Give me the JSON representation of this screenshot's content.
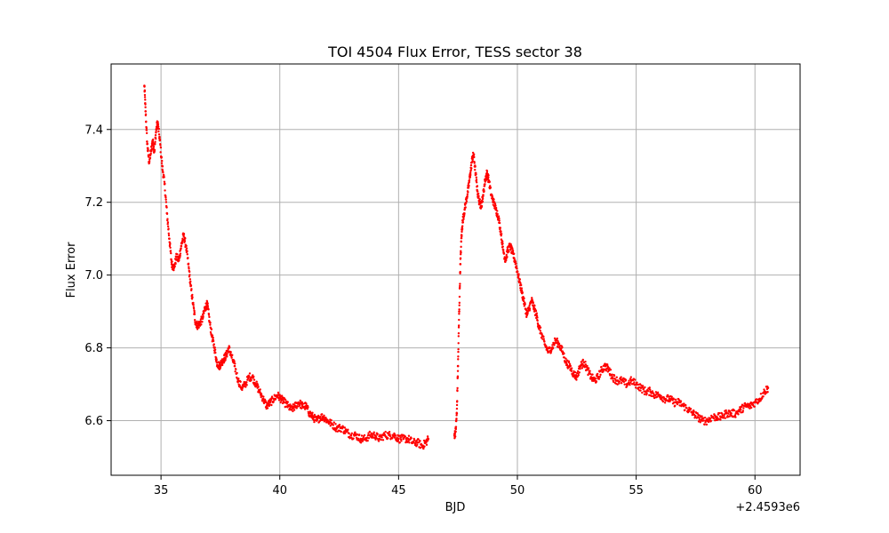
{
  "chart_data": {
    "type": "scatter",
    "title": "TOI 4504 Flux Error, TESS sector 38",
    "xlabel": "BJD",
    "ylabel": "Flux Error",
    "x_offset_label": "+2.4593e6",
    "xlim": [
      32.9,
      61.9
    ],
    "ylim": [
      6.45,
      7.58
    ],
    "xticks": [
      35,
      40,
      45,
      50,
      55,
      60
    ],
    "yticks": [
      6.6,
      6.8,
      7.0,
      7.2,
      7.4
    ],
    "xtick_labels": [
      "35",
      "40",
      "45",
      "50",
      "55",
      "60"
    ],
    "ytick_labels": [
      "6.6",
      "6.8",
      "7.0",
      "7.2",
      "7.4"
    ],
    "grid": true,
    "marker_color": "#ff0000",
    "series": [
      {
        "points": [
          [
            34.3,
            7.52
          ],
          [
            34.35,
            7.45
          ],
          [
            34.42,
            7.36
          ],
          [
            34.5,
            7.31
          ],
          [
            34.58,
            7.34
          ],
          [
            34.65,
            7.37
          ],
          [
            34.72,
            7.34
          ],
          [
            34.8,
            7.4
          ],
          [
            34.86,
            7.42
          ],
          [
            34.95,
            7.37
          ],
          [
            35.05,
            7.3
          ],
          [
            35.15,
            7.25
          ],
          [
            35.25,
            7.17
          ],
          [
            35.35,
            7.1
          ],
          [
            35.45,
            7.03
          ],
          [
            35.55,
            7.02
          ],
          [
            35.65,
            7.05
          ],
          [
            35.75,
            7.04
          ],
          [
            35.85,
            7.08
          ],
          [
            35.95,
            7.11
          ],
          [
            36.05,
            7.08
          ],
          [
            36.15,
            7.03
          ],
          [
            36.25,
            6.97
          ],
          [
            36.35,
            6.92
          ],
          [
            36.45,
            6.87
          ],
          [
            36.55,
            6.86
          ],
          [
            36.65,
            6.87
          ],
          [
            36.75,
            6.88
          ],
          [
            36.85,
            6.91
          ],
          [
            36.95,
            6.92
          ],
          [
            37.05,
            6.87
          ],
          [
            37.15,
            6.83
          ],
          [
            37.25,
            6.8
          ],
          [
            37.35,
            6.76
          ],
          [
            37.45,
            6.75
          ],
          [
            37.55,
            6.76
          ],
          [
            37.65,
            6.77
          ],
          [
            37.75,
            6.78
          ],
          [
            37.85,
            6.8
          ],
          [
            37.95,
            6.78
          ],
          [
            38.1,
            6.75
          ],
          [
            38.25,
            6.71
          ],
          [
            38.4,
            6.69
          ],
          [
            38.55,
            6.7
          ],
          [
            38.7,
            6.72
          ],
          [
            38.85,
            6.72
          ],
          [
            39.0,
            6.7
          ],
          [
            39.15,
            6.68
          ],
          [
            39.3,
            6.66
          ],
          [
            39.45,
            6.64
          ],
          [
            39.6,
            6.65
          ],
          [
            39.75,
            6.66
          ],
          [
            39.9,
            6.67
          ],
          [
            40.05,
            6.66
          ],
          [
            40.2,
            6.65
          ],
          [
            40.35,
            6.64
          ],
          [
            40.5,
            6.63
          ],
          [
            40.65,
            6.64
          ],
          [
            40.8,
            6.65
          ],
          [
            40.95,
            6.64
          ],
          [
            41.1,
            6.64
          ],
          [
            41.25,
            6.62
          ],
          [
            41.4,
            6.61
          ],
          [
            41.55,
            6.6
          ],
          [
            41.7,
            6.61
          ],
          [
            41.85,
            6.61
          ],
          [
            42.0,
            6.6
          ],
          [
            42.2,
            6.59
          ],
          [
            42.4,
            6.58
          ],
          [
            42.6,
            6.58
          ],
          [
            42.8,
            6.57
          ],
          [
            43.0,
            6.56
          ],
          [
            43.2,
            6.56
          ],
          [
            43.4,
            6.55
          ],
          [
            43.6,
            6.55
          ],
          [
            43.8,
            6.56
          ],
          [
            44.0,
            6.56
          ],
          [
            44.2,
            6.55
          ],
          [
            44.4,
            6.56
          ],
          [
            44.6,
            6.56
          ],
          [
            44.8,
            6.56
          ],
          [
            45.0,
            6.55
          ],
          [
            45.2,
            6.55
          ],
          [
            45.4,
            6.55
          ],
          [
            45.6,
            6.54
          ],
          [
            45.8,
            6.54
          ],
          [
            46.0,
            6.53
          ],
          [
            46.15,
            6.54
          ],
          [
            46.25,
            6.55
          ],
          [
            47.35,
            6.56
          ],
          [
            47.4,
            6.57
          ],
          [
            47.45,
            6.62
          ],
          [
            47.5,
            6.75
          ],
          [
            47.55,
            6.9
          ],
          [
            47.6,
            7.03
          ],
          [
            47.65,
            7.11
          ],
          [
            47.7,
            7.15
          ],
          [
            47.78,
            7.18
          ],
          [
            47.86,
            7.21
          ],
          [
            47.94,
            7.24
          ],
          [
            48.02,
            7.28
          ],
          [
            48.1,
            7.32
          ],
          [
            48.16,
            7.33
          ],
          [
            48.24,
            7.28
          ],
          [
            48.32,
            7.23
          ],
          [
            48.4,
            7.2
          ],
          [
            48.48,
            7.19
          ],
          [
            48.56,
            7.22
          ],
          [
            48.64,
            7.26
          ],
          [
            48.72,
            7.28
          ],
          [
            48.8,
            7.26
          ],
          [
            48.9,
            7.22
          ],
          [
            49.0,
            7.2
          ],
          [
            49.1,
            7.18
          ],
          [
            49.2,
            7.16
          ],
          [
            49.3,
            7.12
          ],
          [
            49.4,
            7.07
          ],
          [
            49.5,
            7.04
          ],
          [
            49.6,
            7.07
          ],
          [
            49.7,
            7.08
          ],
          [
            49.8,
            7.06
          ],
          [
            49.9,
            7.04
          ],
          [
            50.0,
            7.01
          ],
          [
            50.1,
            6.98
          ],
          [
            50.2,
            6.95
          ],
          [
            50.3,
            6.92
          ],
          [
            50.4,
            6.89
          ],
          [
            50.5,
            6.91
          ],
          [
            50.6,
            6.93
          ],
          [
            50.7,
            6.91
          ],
          [
            50.8,
            6.89
          ],
          [
            50.9,
            6.86
          ],
          [
            51.0,
            6.84
          ],
          [
            51.15,
            6.81
          ],
          [
            51.3,
            6.79
          ],
          [
            51.45,
            6.8
          ],
          [
            51.6,
            6.82
          ],
          [
            51.75,
            6.81
          ],
          [
            51.9,
            6.79
          ],
          [
            52.05,
            6.76
          ],
          [
            52.2,
            6.75
          ],
          [
            52.35,
            6.73
          ],
          [
            52.5,
            6.72
          ],
          [
            52.65,
            6.75
          ],
          [
            52.8,
            6.76
          ],
          [
            52.95,
            6.74
          ],
          [
            53.1,
            6.72
          ],
          [
            53.25,
            6.71
          ],
          [
            53.4,
            6.72
          ],
          [
            53.55,
            6.74
          ],
          [
            53.7,
            6.75
          ],
          [
            53.85,
            6.74
          ],
          [
            54.0,
            6.72
          ],
          [
            54.2,
            6.71
          ],
          [
            54.4,
            6.71
          ],
          [
            54.6,
            6.7
          ],
          [
            54.8,
            6.71
          ],
          [
            55.0,
            6.7
          ],
          [
            55.2,
            6.69
          ],
          [
            55.4,
            6.68
          ],
          [
            55.6,
            6.68
          ],
          [
            55.8,
            6.67
          ],
          [
            56.0,
            6.67
          ],
          [
            56.2,
            6.66
          ],
          [
            56.4,
            6.66
          ],
          [
            56.6,
            6.65
          ],
          [
            56.8,
            6.65
          ],
          [
            57.0,
            6.64
          ],
          [
            57.2,
            6.63
          ],
          [
            57.4,
            6.62
          ],
          [
            57.6,
            6.61
          ],
          [
            57.8,
            6.6
          ],
          [
            58.0,
            6.6
          ],
          [
            58.2,
            6.61
          ],
          [
            58.4,
            6.61
          ],
          [
            58.6,
            6.61
          ],
          [
            58.8,
            6.62
          ],
          [
            59.0,
            6.62
          ],
          [
            59.2,
            6.62
          ],
          [
            59.4,
            6.63
          ],
          [
            59.6,
            6.64
          ],
          [
            59.8,
            6.64
          ],
          [
            60.0,
            6.65
          ],
          [
            60.2,
            6.66
          ],
          [
            60.4,
            6.68
          ],
          [
            60.55,
            6.69
          ]
        ]
      }
    ]
  }
}
